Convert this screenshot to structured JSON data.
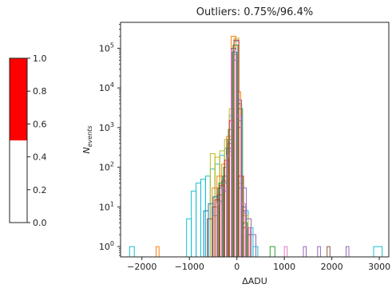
{
  "chart_data": [
    {
      "type": "colorbar",
      "ylim": [
        0,
        1.0
      ],
      "ticks": [
        "0.0",
        "0.2",
        "0.4",
        "0.6",
        "0.8",
        "1.0"
      ],
      "tick_values": [
        0,
        0.2,
        0.4,
        0.6,
        0.8,
        1.0
      ],
      "segments": [
        {
          "from": 0.0,
          "to": 0.5,
          "color": "#ffffff"
        },
        {
          "from": 0.5,
          "to": 1.0,
          "color": "#ff0000"
        }
      ]
    },
    {
      "type": "histogram",
      "title": "Outliers: 0.75%/96.4%",
      "xlabel": "ΔADU",
      "ylabel_main": "N",
      "ylabel_sub": "events",
      "yscale": "log",
      "xlim": [
        -2450,
        3200
      ],
      "ylim": [
        0.55,
        450000
      ],
      "x_ticks": [
        -2000,
        -1000,
        0,
        1000,
        2000,
        3000
      ],
      "x_tick_labels": [
        "−2000",
        "−1000",
        "0",
        "1000",
        "2000",
        "3000"
      ],
      "y_ticks": [
        1,
        10,
        100,
        1000,
        10000,
        100000
      ],
      "y_tick_exponents": [
        "0",
        "1",
        "2",
        "3",
        "4",
        "5"
      ],
      "y_tick_base": "10",
      "series": [
        {
          "color": "#17becf",
          "bins": [
            [
              -2260,
              -2160,
              1
            ],
            [
              -1060,
              -960,
              5
            ],
            [
              -960,
              -860,
              25
            ],
            [
              -860,
              -760,
              40
            ],
            [
              -760,
              -660,
              50
            ],
            [
              -660,
              -560,
              60
            ],
            [
              -560,
              -460,
              90
            ],
            [
              -460,
              -360,
              120
            ],
            [
              -360,
              -260,
              200
            ],
            [
              -260,
              -160,
              300
            ],
            [
              -160,
              -60,
              2000
            ],
            [
              -60,
              40,
              150000
            ],
            [
              40,
              140,
              30
            ],
            [
              140,
              240,
              8
            ],
            [
              240,
              340,
              3
            ],
            [
              340,
              440,
              1
            ],
            [
              2880,
              3060,
              1
            ]
          ]
        },
        {
          "color": "#bcbd22",
          "bins": [
            [
              -560,
              -460,
              220
            ],
            [
              -460,
              -360,
              180
            ],
            [
              -360,
              -260,
              260
            ],
            [
              -260,
              -160,
              500
            ],
            [
              -160,
              -60,
              3000
            ],
            [
              -60,
              40,
              180000
            ],
            [
              40,
              140,
              40
            ],
            [
              140,
              240,
              6
            ]
          ]
        },
        {
          "color": "#1f77b4",
          "bins": [
            [
              -700,
              -600,
              8
            ],
            [
              -600,
              -500,
              12
            ],
            [
              -500,
              -400,
              18
            ],
            [
              -400,
              -300,
              30
            ],
            [
              -300,
              -200,
              60
            ],
            [
              -200,
              -100,
              400
            ],
            [
              -100,
              0,
              80000
            ],
            [
              0,
              100,
              4000
            ],
            [
              100,
              200,
              10
            ],
            [
              200,
              300,
              2
            ]
          ]
        },
        {
          "color": "#ff7f0e",
          "bins": [
            [
              -1700,
              -1640,
              1
            ],
            [
              -520,
              -420,
              30
            ],
            [
              -420,
              -320,
              60
            ],
            [
              -320,
              -220,
              120
            ],
            [
              -220,
              -120,
              600
            ],
            [
              -120,
              -20,
              200000
            ],
            [
              -20,
              80,
              8000
            ],
            [
              80,
              180,
              6
            ],
            [
              180,
              280,
              2
            ]
          ]
        },
        {
          "color": "#2ca02c",
          "bins": [
            [
              -380,
              -280,
              40
            ],
            [
              -280,
              -180,
              100
            ],
            [
              -180,
              -80,
              900
            ],
            [
              -80,
              20,
              120000
            ],
            [
              20,
              120,
              3000
            ],
            [
              120,
              220,
              4
            ],
            [
              700,
              800,
              1
            ]
          ]
        },
        {
          "color": "#d62728",
          "bins": [
            [
              -460,
              -360,
              15
            ],
            [
              -360,
              -260,
              35
            ],
            [
              -260,
              -160,
              150
            ],
            [
              -160,
              -60,
              1500
            ],
            [
              -60,
              40,
              160000
            ],
            [
              40,
              140,
              60
            ],
            [
              140,
              240,
              3
            ]
          ]
        },
        {
          "color": "#9467bd",
          "bins": [
            [
              -300,
              -200,
              25
            ],
            [
              -200,
              -100,
              250
            ],
            [
              -100,
              0,
              50000
            ],
            [
              0,
              100,
              5000
            ],
            [
              100,
              200,
              30
            ],
            [
              200,
              300,
              5
            ],
            [
              300,
              400,
              2
            ],
            [
              1400,
              1460,
              1
            ],
            [
              1700,
              1760,
              1
            ],
            [
              2300,
              2360,
              1
            ]
          ]
        },
        {
          "color": "#8c564b",
          "bins": [
            [
              -620,
              -520,
              5
            ],
            [
              -520,
              -420,
              10
            ],
            [
              -420,
              -320,
              20
            ],
            [
              -320,
              -220,
              45
            ],
            [
              -220,
              -120,
              300
            ],
            [
              -120,
              -20,
              100000
            ],
            [
              -20,
              80,
              1000
            ],
            [
              80,
              180,
              8
            ],
            [
              180,
              280,
              2
            ],
            [
              1900,
              1960,
              1
            ]
          ]
        },
        {
          "color": "#e377c2",
          "bins": [
            [
              -420,
              -320,
              12
            ],
            [
              -320,
              -220,
              30
            ],
            [
              -220,
              -120,
              200
            ],
            [
              -120,
              -20,
              90000
            ],
            [
              -20,
              80,
              2000
            ],
            [
              80,
              180,
              12
            ],
            [
              180,
              280,
              3
            ],
            [
              1000,
              1060,
              1
            ]
          ]
        },
        {
          "color": "#7f7f7f",
          "bins": [
            [
              -500,
              -400,
              6
            ],
            [
              -400,
              -300,
              14
            ],
            [
              -300,
              -200,
              40
            ],
            [
              -200,
              -100,
              500
            ],
            [
              -100,
              0,
              70000
            ],
            [
              0,
              100,
              1500
            ],
            [
              100,
              200,
              7
            ],
            [
              200,
              300,
              2
            ]
          ]
        }
      ]
    }
  ]
}
